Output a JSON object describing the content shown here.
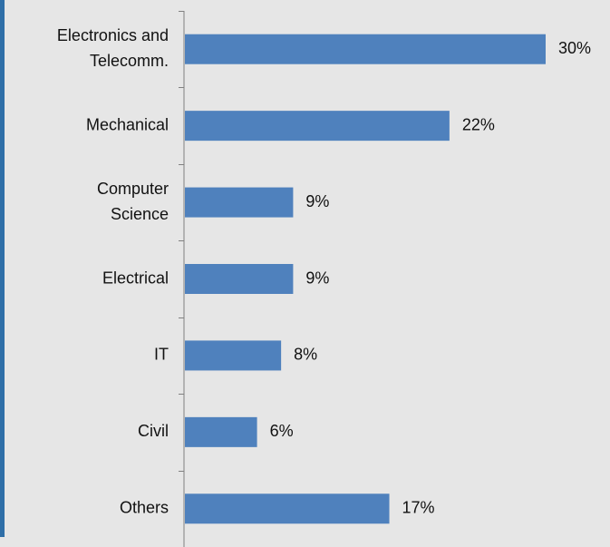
{
  "colors": {
    "background": "#e6e6e6",
    "bar": "#4f81bd",
    "left_edge": "#2f6fa8",
    "axis": "#808080"
  },
  "chart_data": {
    "type": "bar",
    "orientation": "horizontal",
    "categories": [
      "Electronics and Telecomm.",
      "Mechanical",
      "Computer Science",
      "Electrical",
      "IT",
      "Civil",
      "Others"
    ],
    "category_lines": [
      [
        "Electronics and",
        "Telecomm."
      ],
      [
        "Mechanical"
      ],
      [
        "Computer",
        "Science"
      ],
      [
        "Electrical"
      ],
      [
        "IT"
      ],
      [
        "Civil"
      ],
      [
        "Others"
      ]
    ],
    "values": [
      30,
      22,
      9,
      9,
      8,
      6,
      17
    ],
    "value_labels": [
      "30%",
      "22%",
      "9%",
      "9%",
      "8%",
      "6%",
      "17%"
    ],
    "unit": "%",
    "xlim": [
      0,
      30
    ],
    "grid": false,
    "legend": "none"
  }
}
